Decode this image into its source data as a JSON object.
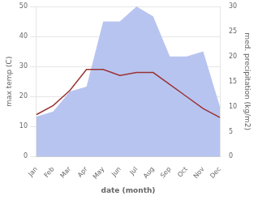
{
  "chart_data": {
    "type": "line",
    "categories": [
      "Jan",
      "Feb",
      "Mar",
      "Apr",
      "May",
      "Jun",
      "Jul",
      "Aug",
      "Sep",
      "Oct",
      "Nov",
      "Dec"
    ],
    "series": [
      {
        "type": "line",
        "color": "#993333",
        "values": [
          14,
          17,
          22,
          29,
          29,
          27,
          28,
          28,
          24,
          20,
          16,
          13
        ]
      },
      {
        "type": "area",
        "color": "#b8c4f0",
        "axis": "y2",
        "values": [
          8,
          9,
          13,
          14,
          27,
          27,
          30,
          28,
          20,
          20,
          21,
          10
        ]
      }
    ],
    "xlabel": "date (month)",
    "ylabel": "max temp (C)",
    "y2label": "med. precipitation (kg/m2)",
    "ylim": [
      0,
      50
    ],
    "yticks": [
      0,
      10,
      20,
      30,
      40,
      50
    ],
    "y2lim": [
      0,
      30
    ],
    "y2ticks": [
      0,
      5,
      10,
      15,
      20,
      25,
      30
    ],
    "grid": true
  }
}
